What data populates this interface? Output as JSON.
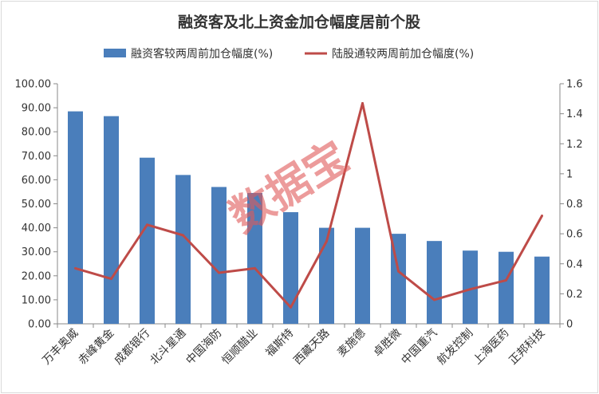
{
  "chart_data": {
    "type": "bar",
    "title": "融资客及北上资金加仓幅度居前个股",
    "categories": [
      "万丰奥威",
      "赤峰黄金",
      "成都银行",
      "北斗星通",
      "中国海防",
      "恒顺醋业",
      "福斯特",
      "西藏天路",
      "麦施德",
      "卓胜微",
      "中国重汽",
      "航发控制",
      "上海医药",
      "正邦科技"
    ],
    "series": [
      {
        "name": "融资客较两周前加仓幅度(%)",
        "type": "bar",
        "axis": "left",
        "color": "#4a7ebb",
        "values": [
          88.5,
          86.5,
          69.2,
          62.0,
          57.0,
          54.5,
          46.5,
          40.0,
          40.0,
          37.5,
          34.5,
          30.5,
          30.0,
          28.0
        ]
      },
      {
        "name": "陆股通较两周前加仓幅度(%)",
        "type": "line",
        "axis": "right",
        "color": "#be4b48",
        "values": [
          0.37,
          0.3,
          0.66,
          0.59,
          0.34,
          0.37,
          0.11,
          0.55,
          1.47,
          0.35,
          0.16,
          0.23,
          0.29,
          0.72
        ]
      }
    ],
    "ylim_left": [
      0,
      100
    ],
    "yticks_left": [
      "0.00",
      "10.00",
      "20.00",
      "30.00",
      "40.00",
      "50.00",
      "60.00",
      "70.00",
      "80.00",
      "90.00",
      "100.00"
    ],
    "ylim_right": [
      0,
      1.6
    ],
    "yticks_right": [
      "0",
      "0.2",
      "0.4",
      "0.6",
      "0.8",
      "1",
      "1.2",
      "1.4",
      "1.6"
    ],
    "grid": false,
    "legend_position": "top",
    "watermark": "数据宝"
  }
}
